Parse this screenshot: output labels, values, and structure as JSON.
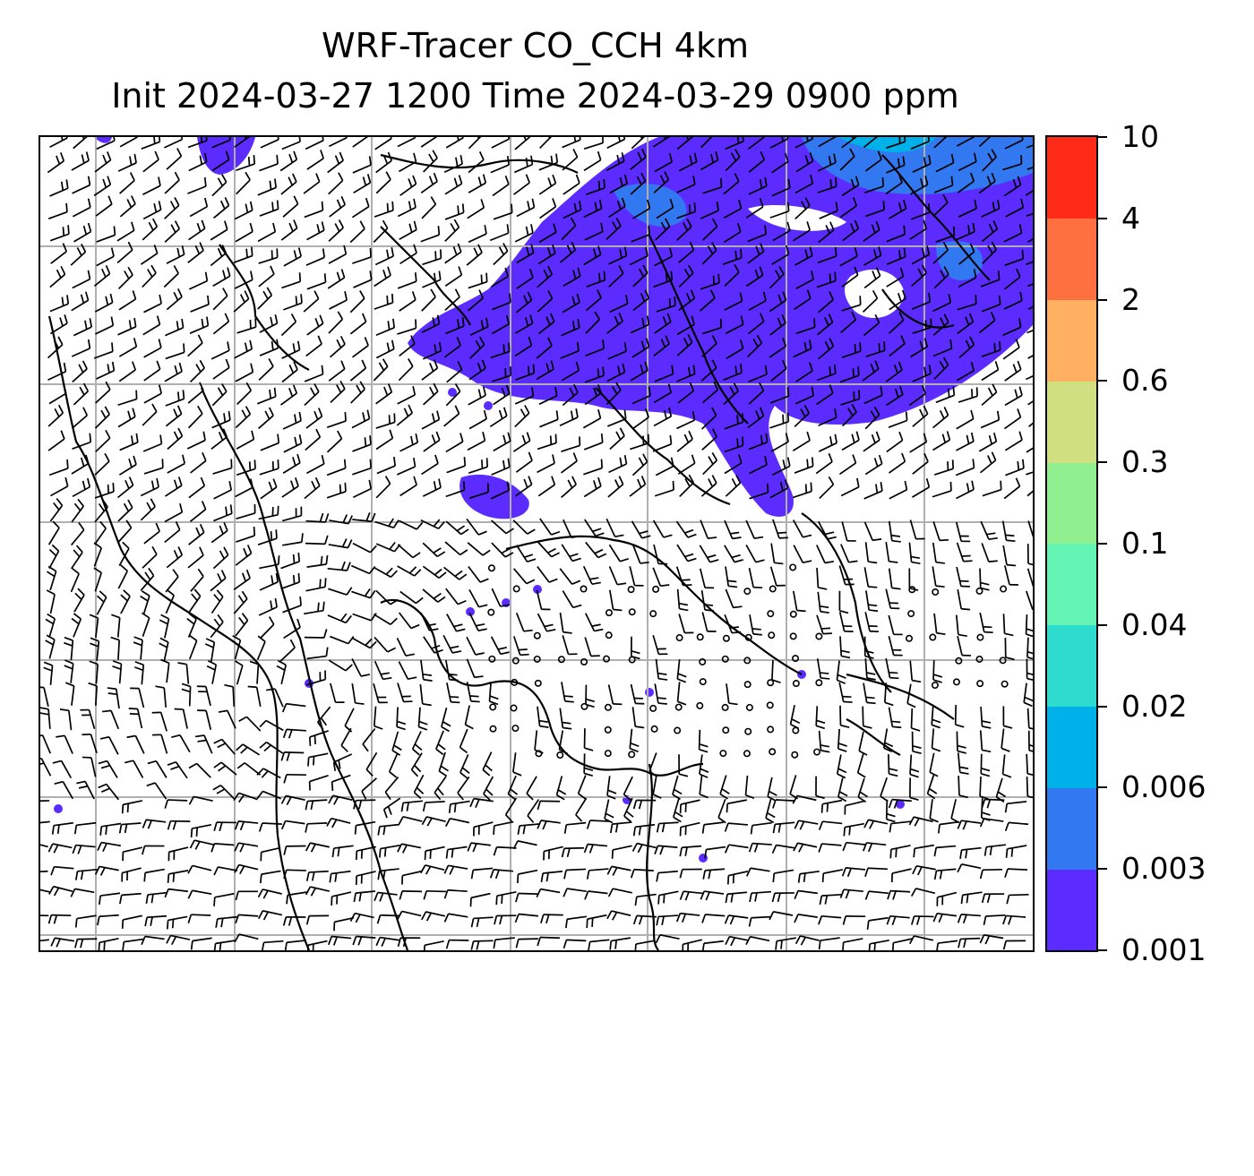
{
  "title": {
    "line1": "WRF-Tracer CO_CCH 4km",
    "line2": "Init 2024-03-27 1200 Time 2024-03-29 0900 ppm"
  },
  "colorbar": {
    "levels": [
      "0.001",
      "0.003",
      "0.006",
      "0.02",
      "0.04",
      "0.1",
      "0.3",
      "0.6",
      "2",
      "4",
      "10"
    ],
    "colors": [
      "#5b2bff",
      "#3278f0",
      "#00b0e8",
      "#2ddccc",
      "#64f4b4",
      "#90f090",
      "#d0e080",
      "#ffb060",
      "#ff7040",
      "#ff2a18"
    ]
  },
  "map": {
    "plume_color": "#5b2bff",
    "plume_mid_color": "#3278f0",
    "plume_core_color": "#00b0e8",
    "gridline_color": "#b0b0b0",
    "coastline_color": "#000000",
    "barb_color": "#000000",
    "calm_marker": "circle"
  }
}
